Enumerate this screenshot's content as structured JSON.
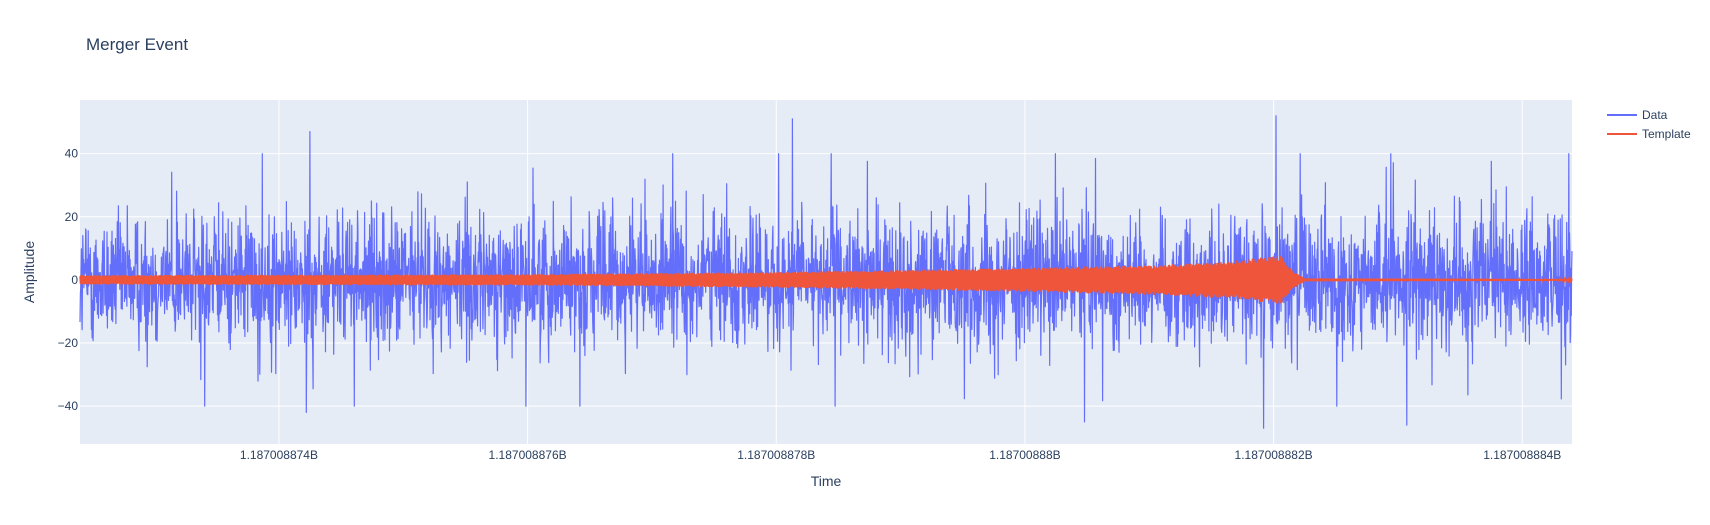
{
  "chart_data": {
    "type": "line",
    "title": "Merger Event",
    "xlabel": "Time",
    "ylabel": "Amplitude",
    "xlim": [
      1187008872.4,
      1187008884.4
    ],
    "ylim": [
      -52,
      57
    ],
    "x_ticks": [
      1187008874,
      1187008876,
      1187008878,
      1187008880,
      1187008882,
      1187008884
    ],
    "x_tick_labels": [
      "1.187008874B",
      "1.187008876B",
      "1.187008878B",
      "1.18700888B",
      "1.187008882B",
      "1.187008884B"
    ],
    "y_ticks": [
      -40,
      -20,
      0,
      20,
      40
    ],
    "y_tick_labels": [
      "−40",
      "−20",
      "0",
      "20",
      "40"
    ],
    "grid": true,
    "legend_position": "top-right",
    "colors": {
      "plot_bg": "#e5ecf6",
      "grid": "#ffffff",
      "text": "#2a3f5f"
    },
    "series": [
      {
        "name": "Data",
        "color": "#636efa",
        "description_of_values": "dense noisy strain signal",
        "typical_range": [
          -40,
          40
        ],
        "extremes": [
          {
            "x": 1187008874.25,
            "y": 47
          },
          {
            "x": 1187008878.13,
            "y": 51
          },
          {
            "x": 1187008882.02,
            "y": 52
          },
          {
            "x": 1187008881.92,
            "y": -47
          },
          {
            "x": 1187008883.07,
            "y": -46
          },
          {
            "x": 1187008880.48,
            "y": -45
          },
          {
            "x": 1187008874.22,
            "y": -42
          }
        ]
      },
      {
        "name": "Template",
        "color": "#ef553b",
        "description_of_values": "chirp template, envelope amplitude over time",
        "envelope": [
          {
            "x": 1187008872.4,
            "y": 1.5
          },
          {
            "x": 1187008876.0,
            "y": 1.8
          },
          {
            "x": 1187008878.0,
            "y": 2.5
          },
          {
            "x": 1187008880.0,
            "y": 3.8
          },
          {
            "x": 1187008881.0,
            "y": 4.8
          },
          {
            "x": 1187008881.6,
            "y": 5.8
          },
          {
            "x": 1187008882.0,
            "y": 7.5
          },
          {
            "x": 1187008882.05,
            "y": 8.0
          },
          {
            "x": 1187008882.15,
            "y": 3.0
          },
          {
            "x": 1187008882.25,
            "y": 0.5
          },
          {
            "x": 1187008884.4,
            "y": 0.3
          }
        ]
      }
    ]
  }
}
